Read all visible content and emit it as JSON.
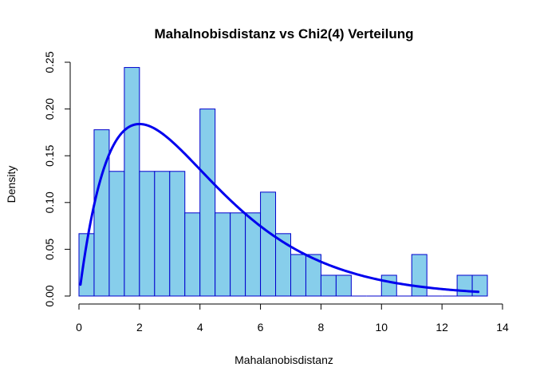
{
  "chart_data": {
    "type": "bar",
    "title": "Mahalnobisdistanz vs Chi2(4) Verteilung",
    "xlabel": "Mahalanobisdistanz",
    "ylabel": "Density",
    "xlim": [
      0,
      14
    ],
    "ylim": [
      0,
      0.25
    ],
    "xticks": [
      "0",
      "2",
      "4",
      "6",
      "8",
      "10",
      "12",
      "14"
    ],
    "xtick_values": [
      0,
      2,
      4,
      6,
      8,
      10,
      12,
      14
    ],
    "yticks": [
      "0.00",
      "0.05",
      "0.10",
      "0.15",
      "0.20",
      "0.25"
    ],
    "ytick_values": [
      0,
      0.05,
      0.1,
      0.15,
      0.2,
      0.25
    ],
    "bin_width": 0.5,
    "bins": [
      {
        "x0": 0.0,
        "x1": 0.5,
        "density": 0.0667
      },
      {
        "x0": 0.5,
        "x1": 1.0,
        "density": 0.1778
      },
      {
        "x0": 1.0,
        "x1": 1.5,
        "density": 0.1333
      },
      {
        "x0": 1.5,
        "x1": 2.0,
        "density": 0.2444
      },
      {
        "x0": 2.0,
        "x1": 2.5,
        "density": 0.1333
      },
      {
        "x0": 2.5,
        "x1": 3.0,
        "density": 0.1333
      },
      {
        "x0": 3.0,
        "x1": 3.5,
        "density": 0.1333
      },
      {
        "x0": 3.5,
        "x1": 4.0,
        "density": 0.0889
      },
      {
        "x0": 4.0,
        "x1": 4.5,
        "density": 0.2
      },
      {
        "x0": 4.5,
        "x1": 5.0,
        "density": 0.0889
      },
      {
        "x0": 5.0,
        "x1": 5.5,
        "density": 0.0889
      },
      {
        "x0": 5.5,
        "x1": 6.0,
        "density": 0.0889
      },
      {
        "x0": 6.0,
        "x1": 6.5,
        "density": 0.1111
      },
      {
        "x0": 6.5,
        "x1": 7.0,
        "density": 0.0667
      },
      {
        "x0": 7.0,
        "x1": 7.5,
        "density": 0.0444
      },
      {
        "x0": 7.5,
        "x1": 8.0,
        "density": 0.0444
      },
      {
        "x0": 8.0,
        "x1": 8.5,
        "density": 0.0222
      },
      {
        "x0": 8.5,
        "x1": 9.0,
        "density": 0.0222
      },
      {
        "x0": 9.0,
        "x1": 9.5,
        "density": 0.0
      },
      {
        "x0": 9.5,
        "x1": 10.0,
        "density": 0.0
      },
      {
        "x0": 10.0,
        "x1": 10.5,
        "density": 0.0222
      },
      {
        "x0": 10.5,
        "x1": 11.0,
        "density": 0.0
      },
      {
        "x0": 11.0,
        "x1": 11.5,
        "density": 0.0444
      },
      {
        "x0": 11.5,
        "x1": 12.0,
        "density": 0.0
      },
      {
        "x0": 12.0,
        "x1": 12.5,
        "density": 0.0
      },
      {
        "x0": 12.5,
        "x1": 13.0,
        "density": 0.0222
      },
      {
        "x0": 13.0,
        "x1": 13.5,
        "density": 0.0222
      }
    ],
    "curve": {
      "distribution": "chi-squared",
      "df": 4,
      "x_range": [
        0.05,
        13.2
      ]
    },
    "colors": {
      "bar_fill": "#87CEEB",
      "bar_border": "#0000CD",
      "curve": "#0000EE",
      "axis": "#000000"
    },
    "grid": false,
    "legend": "none"
  }
}
